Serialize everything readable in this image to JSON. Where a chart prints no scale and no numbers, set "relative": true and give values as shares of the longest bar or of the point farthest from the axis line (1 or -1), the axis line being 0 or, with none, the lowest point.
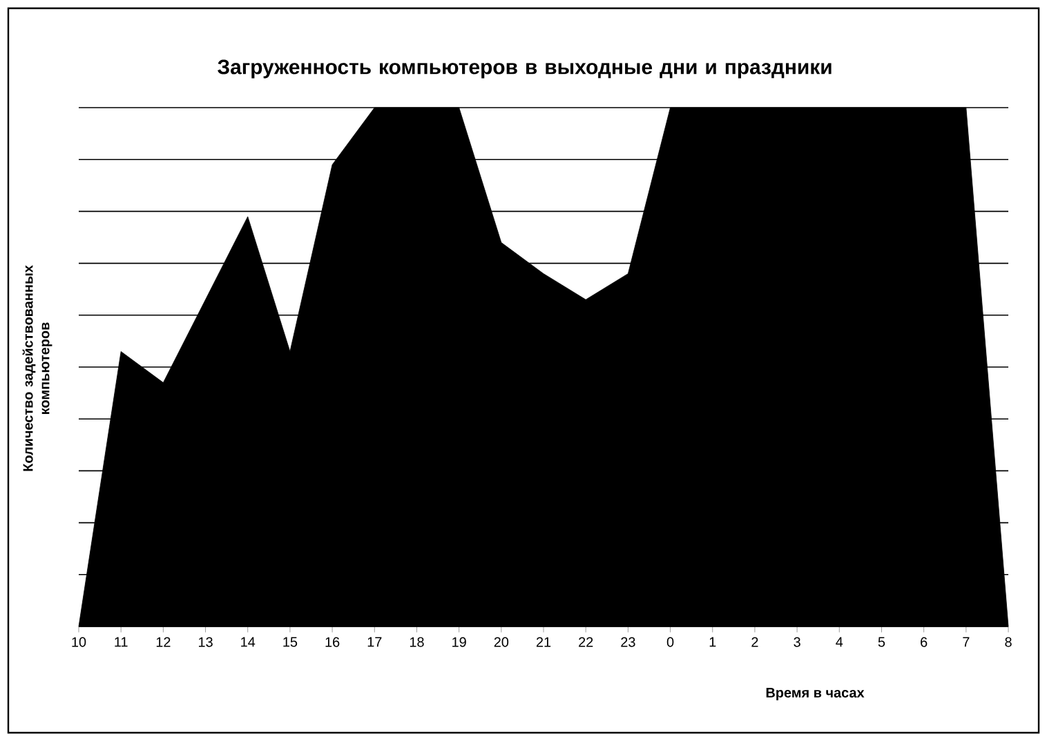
{
  "chart_data": {
    "type": "area",
    "title": "Загруженность компьютеров в выходные дни и праздники",
    "xlabel": "Время в часах",
    "ylabel": "Количество задействованных компьютеров",
    "categories": [
      "10",
      "11",
      "12",
      "13",
      "14",
      "15",
      "16",
      "17",
      "18",
      "19",
      "20",
      "21",
      "22",
      "23",
      "0",
      "1",
      "2",
      "3",
      "4",
      "5",
      "6",
      "7",
      "8"
    ],
    "relative": true,
    "color": "#000000",
    "grid": "y",
    "values": [
      0,
      0.53,
      0.47,
      0.63,
      0.79,
      0.53,
      0.89,
      1,
      1,
      1,
      0.74,
      0.68,
      0.63,
      0.68,
      1,
      1,
      1,
      1,
      1,
      1,
      1,
      1,
      0
    ]
  }
}
